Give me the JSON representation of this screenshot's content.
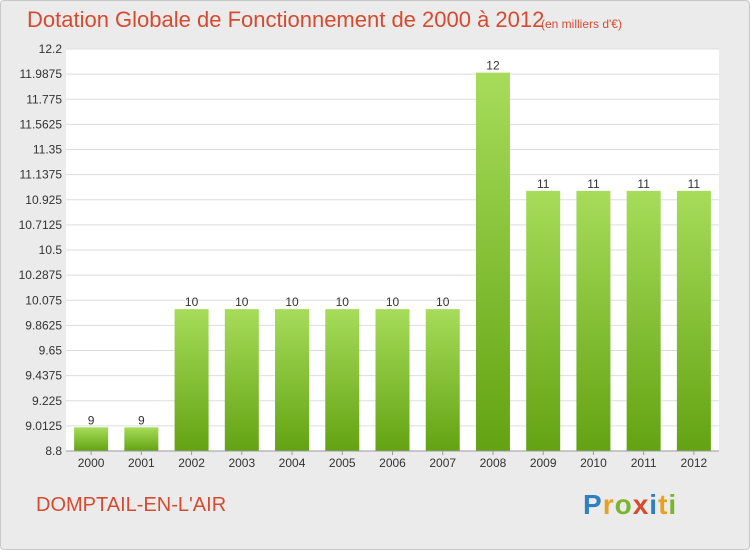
{
  "header": {
    "title": "Dotation Globale de Fonctionnement de 2000 à 2012",
    "units": "(en milliers d'€)"
  },
  "footer": {
    "commune": "DOMPTAIL-EN-L'AIR",
    "logo_text": "Proxiti"
  },
  "colors": {
    "title": "#d64b2f",
    "bar_top": "#a6dc5a",
    "bar_bottom": "#63a312",
    "plot_background": "#ffffff",
    "page_background": "#ebebeb"
  },
  "chart_data": {
    "type": "bar",
    "categories": [
      "2000",
      "2001",
      "2002",
      "2003",
      "2004",
      "2005",
      "2006",
      "2007",
      "2008",
      "2009",
      "2010",
      "2011",
      "2012"
    ],
    "values": [
      9,
      9,
      10,
      10,
      10,
      10,
      10,
      10,
      12,
      11,
      11,
      11,
      11
    ],
    "data_labels": [
      "9",
      "9",
      "10",
      "10",
      "10",
      "10",
      "10",
      "10",
      "12",
      "11",
      "11",
      "11",
      "11"
    ],
    "yticks": [
      8.8,
      9.0125,
      9.225,
      9.4375,
      9.65,
      9.8625,
      10.075,
      10.2875,
      10.5,
      10.7125,
      10.925,
      11.1375,
      11.35,
      11.5625,
      11.775,
      11.9875,
      12.2
    ],
    "ytick_labels": [
      "8.8",
      "9.0125",
      "9.225",
      "9.4375",
      "9.65",
      "9.8625",
      "10.075",
      "10.2875",
      "10.5",
      "10.7125",
      "10.925",
      "11.1375",
      "11.35",
      "11.5625",
      "11.775",
      "11.9875",
      "12.2"
    ],
    "ylim": [
      8.8,
      12.2
    ],
    "grid": true,
    "legend": "none"
  }
}
